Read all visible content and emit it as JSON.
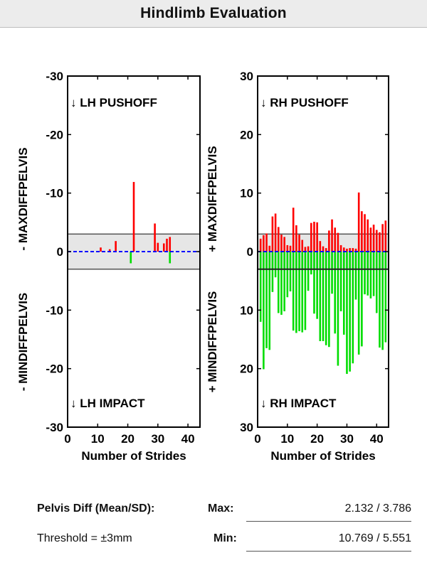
{
  "header": {
    "title": "Hindlimb Evaluation"
  },
  "chart_data": [
    {
      "type": "bar",
      "name": "left-hindlimb",
      "xlabel": "Number of Strides",
      "ylabel_top": "- MAXDIFFPELVIS",
      "ylabel_bottom": "- MINDIFFPELVIS",
      "xlim": [
        0,
        44
      ],
      "ylim": [
        -30,
        30
      ],
      "xticks": [
        "0",
        "10",
        "20",
        "30",
        "40"
      ],
      "yticks": [
        "-30",
        "-20",
        "-10",
        "0",
        "-10",
        "-20",
        "-30"
      ],
      "annotation_top": "↓ LH PUSHOFF",
      "annotation_bottom": "↓ LH IMPACT",
      "threshold_band": [
        -3,
        3
      ],
      "threshold_line": null,
      "zero_line_style": "blue-dashed",
      "colors": {
        "max": "#ff0000",
        "min": "#00dd00",
        "band": "#e6e6e6",
        "zero": "#0000ff"
      },
      "max_series": {
        "x": [
          11,
          14,
          16,
          22,
          29,
          30,
          32,
          33,
          34
        ],
        "values": [
          0.7,
          0.4,
          1.8,
          11.9,
          4.8,
          1.5,
          1.4,
          2.2,
          2.5
        ]
      },
      "min_series": {
        "x": [
          21,
          34
        ],
        "values": [
          -2.0,
          -2.0
        ]
      }
    },
    {
      "type": "bar",
      "name": "right-hindlimb",
      "xlabel": "Number of Strides",
      "ylabel_top": "+ MAXDIFFPELVIS",
      "ylabel_bottom": "+ MINDIFFPELVIS",
      "xlim": [
        0,
        44
      ],
      "ylim": [
        -30,
        30
      ],
      "xticks": [
        "0",
        "10",
        "20",
        "30",
        "40"
      ],
      "yticks": [
        "30",
        "20",
        "10",
        "0",
        "10",
        "20",
        "30"
      ],
      "annotation_top": "↓ RH PUSHOFF",
      "annotation_bottom": "↓ RH IMPACT",
      "threshold_band": [
        -3,
        3
      ],
      "threshold_line": -3,
      "zero_line_style": "blue-dashed",
      "colors": {
        "max": "#ff0000",
        "min": "#00dd00",
        "band": "#e6e6e6",
        "zero": "#0000ff"
      },
      "max_series": {
        "x": [
          1,
          2,
          3,
          4,
          5,
          6,
          7,
          8,
          9,
          10,
          11,
          12,
          13,
          14,
          15,
          16,
          17,
          18,
          19,
          20,
          21,
          22,
          23,
          24,
          25,
          26,
          27,
          28,
          29,
          30,
          31,
          32,
          33,
          34,
          35,
          36,
          37,
          38,
          39,
          40,
          41,
          42,
          43
        ],
        "values": [
          2.2,
          2.8,
          3.1,
          1.0,
          6.0,
          6.5,
          4.2,
          2.9,
          2.5,
          1.1,
          1.0,
          7.5,
          4.5,
          2.9,
          2.0,
          0.8,
          0.9,
          4.9,
          5.1,
          5.0,
          1.8,
          0.9,
          0.6,
          3.6,
          5.5,
          4.1,
          3.2,
          1.1,
          0.7,
          0.5,
          0.6,
          0.6,
          0.5,
          10.1,
          6.9,
          6.4,
          5.5,
          4.1,
          4.6,
          3.7,
          3.3,
          4.7,
          5.3
        ]
      },
      "min_series": {
        "x": [
          1,
          2,
          3,
          4,
          5,
          6,
          7,
          8,
          9,
          10,
          11,
          12,
          13,
          14,
          15,
          16,
          17,
          18,
          19,
          20,
          21,
          22,
          23,
          24,
          25,
          26,
          27,
          28,
          29,
          30,
          31,
          32,
          33,
          34,
          35,
          36,
          37,
          38,
          39,
          40,
          41,
          42,
          43
        ],
        "values": [
          -12.0,
          -20.1,
          -16.5,
          -16.8,
          -6.9,
          -4.4,
          -10.5,
          -10.8,
          -10.2,
          -7.8,
          -6.8,
          -13.5,
          -13.9,
          -13.6,
          -13.8,
          -13.4,
          -6.7,
          -3.9,
          -10.6,
          -11.5,
          -15.3,
          -15.3,
          -16.0,
          -16.3,
          -7.2,
          -14.0,
          -19.5,
          -10.2,
          -14.2,
          -20.9,
          -20.5,
          -19.1,
          -8.2,
          -17.6,
          -16.2,
          -7.3,
          -7.5,
          -8.0,
          -7.6,
          -10.5,
          -16.4,
          -16.8,
          -15.5
        ]
      }
    }
  ],
  "summary": {
    "row1_label": "Pelvis Diff (Mean/SD):",
    "max_label": "Max:",
    "max_value": "2.132 / 3.786",
    "row2_label": "Threshold = ±3mm",
    "min_label": "Min:",
    "min_value": "10.769 / 5.551"
  }
}
